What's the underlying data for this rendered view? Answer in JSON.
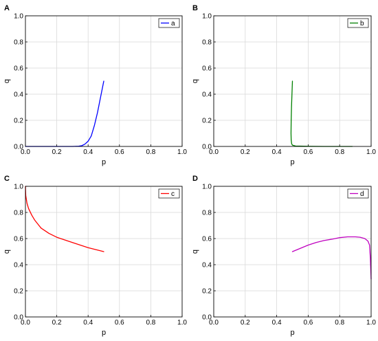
{
  "chart_data": [
    {
      "panel": "A",
      "type": "line",
      "xlabel": "p",
      "ylabel": "q",
      "xlim": [
        0,
        1
      ],
      "ylim": [
        0,
        1
      ],
      "xticks": [
        "0.0",
        "0.2",
        "0.4",
        "0.6",
        "0.8",
        "1.0"
      ],
      "yticks": [
        "0.0",
        "0.2",
        "0.4",
        "0.6",
        "0.8",
        "1.0"
      ],
      "grid": true,
      "legend_position": "top-right",
      "series": [
        {
          "name": "a",
          "color": "#0000ff",
          "x": [
            0.0,
            0.1,
            0.2,
            0.3,
            0.34,
            0.36,
            0.38,
            0.4,
            0.42,
            0.44,
            0.46,
            0.48,
            0.5
          ],
          "y": [
            0.0,
            0.0,
            0.0,
            0.0,
            0.002,
            0.006,
            0.018,
            0.04,
            0.08,
            0.16,
            0.26,
            0.38,
            0.5
          ]
        }
      ]
    },
    {
      "panel": "B",
      "type": "line",
      "xlabel": "p",
      "ylabel": "q",
      "xlim": [
        0,
        1
      ],
      "ylim": [
        0,
        1
      ],
      "xticks": [
        "0.0",
        "0.2",
        "0.4",
        "0.6",
        "0.8",
        "1.0"
      ],
      "yticks": [
        "0.0",
        "0.2",
        "0.4",
        "0.6",
        "0.8",
        "1.0"
      ],
      "grid": true,
      "legend_position": "top-right",
      "series": [
        {
          "name": "b",
          "color": "#008000",
          "x": [
            0.5,
            0.497,
            0.494,
            0.492,
            0.491,
            0.492,
            0.495,
            0.5,
            0.52,
            0.6,
            0.7,
            0.8,
            0.88
          ],
          "y": [
            0.5,
            0.4,
            0.3,
            0.2,
            0.1,
            0.05,
            0.02,
            0.01,
            0.003,
            0.001,
            0.0,
            0.0,
            0.0
          ]
        }
      ]
    },
    {
      "panel": "C",
      "type": "line",
      "xlabel": "p",
      "ylabel": "q",
      "xlim": [
        0,
        1
      ],
      "ylim": [
        0,
        1
      ],
      "xticks": [
        "0.0",
        "0.2",
        "0.4",
        "0.6",
        "0.8",
        "1.0"
      ],
      "yticks": [
        "0.0",
        "0.2",
        "0.4",
        "0.6",
        "0.8",
        "1.0"
      ],
      "grid": true,
      "legend_position": "top-right",
      "series": [
        {
          "name": "c",
          "color": "#ff0000",
          "x": [
            0.0,
            0.002,
            0.01,
            0.02,
            0.04,
            0.06,
            0.08,
            0.1,
            0.15,
            0.2,
            0.3,
            0.4,
            0.5
          ],
          "y": [
            1.0,
            0.93,
            0.87,
            0.83,
            0.78,
            0.74,
            0.71,
            0.68,
            0.64,
            0.61,
            0.57,
            0.53,
            0.5
          ]
        }
      ]
    },
    {
      "panel": "D",
      "type": "line",
      "xlabel": "p",
      "ylabel": "q",
      "xlim": [
        0,
        1
      ],
      "ylim": [
        0,
        1
      ],
      "xticks": [
        "0.0",
        "0.2",
        "0.4",
        "0.6",
        "0.8",
        "1.0"
      ],
      "yticks": [
        "0.0",
        "0.2",
        "0.4",
        "0.6",
        "0.8",
        "1.0"
      ],
      "grid": true,
      "legend_position": "top-right",
      "series": [
        {
          "name": "d",
          "color": "#bf00bf",
          "x": [
            0.5,
            0.55,
            0.6,
            0.65,
            0.7,
            0.75,
            0.8,
            0.85,
            0.9,
            0.93,
            0.96,
            0.98,
            0.99,
            0.995,
            1.0
          ],
          "y": [
            0.5,
            0.525,
            0.55,
            0.57,
            0.585,
            0.595,
            0.607,
            0.613,
            0.613,
            0.61,
            0.6,
            0.58,
            0.55,
            0.45,
            0.29
          ]
        }
      ]
    }
  ]
}
